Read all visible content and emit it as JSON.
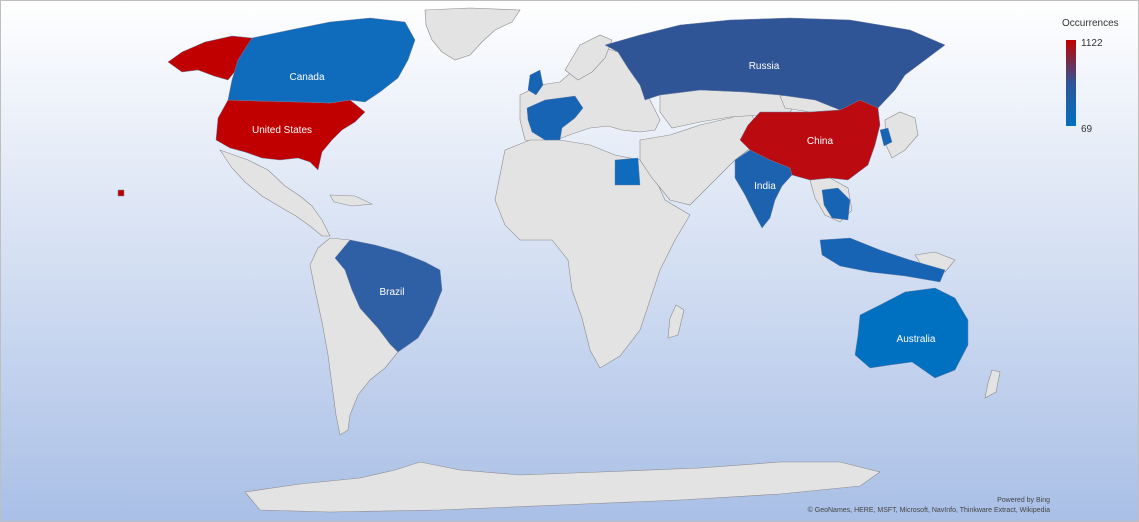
{
  "legend": {
    "title": "Occurrences",
    "max_label": "1122",
    "min_label": "69",
    "max_value": 1122,
    "min_value": 69,
    "color_high": "#c00000",
    "color_mid": "#2f5597",
    "color_low": "#0070c0"
  },
  "colors": {
    "land_default": "#e3e3e3",
    "border": "#8c8c8c",
    "background_top": "#ffffff",
    "background_bottom": "#a9bfe6"
  },
  "countries": [
    {
      "name": "United States",
      "label": "United States",
      "value": 1122,
      "color": "#c00000"
    },
    {
      "name": "China",
      "label": "China",
      "value": 1050,
      "color": "#bb0a10"
    },
    {
      "name": "Russia",
      "label": "Russia",
      "value": 300,
      "color": "#2f5597"
    },
    {
      "name": "Brazil",
      "label": "Brazil",
      "value": 260,
      "color": "#2f5fa5"
    },
    {
      "name": "Canada",
      "label": "Canada",
      "value": 120,
      "color": "#0f6bbb"
    },
    {
      "name": "India",
      "label": "India",
      "value": 150,
      "color": "#1d62ae"
    },
    {
      "name": "Australia",
      "label": "Australia",
      "value": 69,
      "color": "#0070c0"
    }
  ],
  "attribution": {
    "powered_by": "Powered by Bing",
    "credits": "© GeoNames, HERE, MSFT, Microsoft, NavInfo, Thinkware Extract, Wikipedia"
  }
}
